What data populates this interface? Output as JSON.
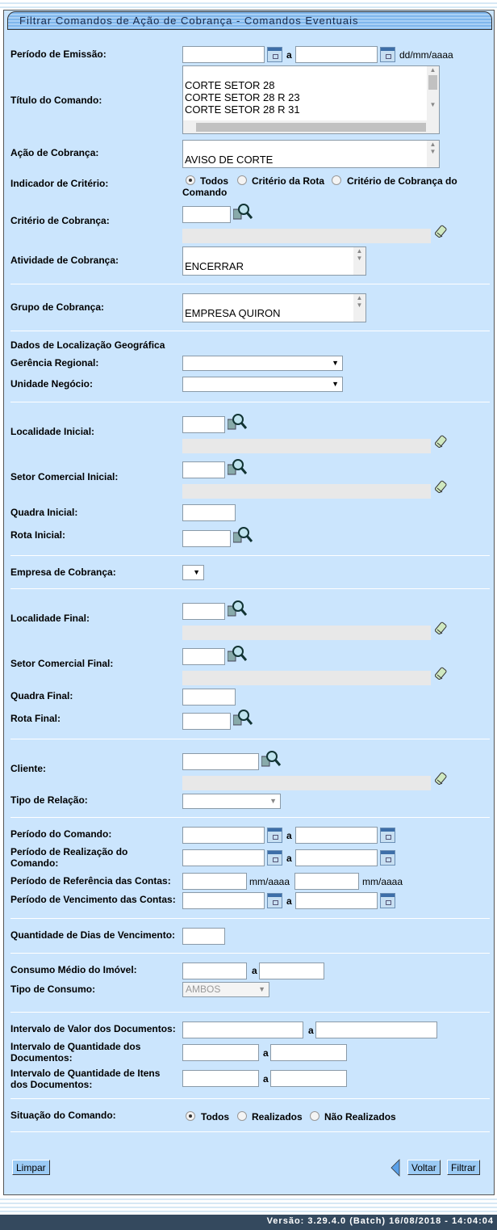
{
  "title": "Filtrar Comandos de Ação de Cobrança - Comandos Eventuais",
  "labels": {
    "periodo_emissao": "Período de Emissão:",
    "titulo": "Título do Comando:",
    "acao": "Ação de Cobrança:",
    "indicador": "Indicador de Critério:",
    "criterio": "Critério de Cobrança:",
    "atividade": "Atividade de Cobrança:",
    "grupo": "Grupo de Cobrança:",
    "dados_loc": "Dados de Localização Geográfica",
    "gerencia": "Gerência Regional:",
    "unidade": "Unidade Negócio:",
    "loc_ini": "Localidade Inicial:",
    "setor_ini": "Setor Comercial Inicial:",
    "quadra_ini": "Quadra Inicial:",
    "rota_ini": "Rota Inicial:",
    "empresa": "Empresa de Cobrança:",
    "loc_fin": "Localidade Final:",
    "setor_fin": "Setor Comercial Final:",
    "quadra_fin": "Quadra Final:",
    "rota_fin": "Rota Final:",
    "cliente": "Cliente:",
    "tipo_relacao": "Tipo de Relação:",
    "periodo_comando": "Período do Comando:",
    "periodo_realizacao_1": "Período de Realização do",
    "periodo_realizacao_2": "Comando:",
    "periodo_referencia": "Período de Referência das Contas:",
    "periodo_vencimento": "Período de Vencimento das Contas:",
    "qtd_dias": "Quantidade de Dias de Vencimento:",
    "consumo": "Consumo Médio do Imóvel:",
    "tipo_consumo": "Tipo de Consumo:",
    "valor_docs": "Intervalo de Valor dos Documentos:",
    "qtd_docs_1": "Intervalo de Quantidade dos",
    "qtd_docs_2": "Documentos:",
    "qtd_itens_1": "Intervalo de Quantidade de Itens",
    "qtd_itens_2": "dos Documentos:",
    "situacao": "Situação do Comando:"
  },
  "a": "a",
  "date_hint": "dd/mm/aaaa",
  "month_hint": "mm/aaaa",
  "titulo_options": [
    "CORTE SETOR 28",
    "CORTE SETOR 28 R 23",
    "CORTE SETOR 28 R 31"
  ],
  "acao_value": "AVISO DE CORTE",
  "atividade_value": "ENCERRAR",
  "grupo_value": "EMPRESA QUIRON",
  "tipo_consumo_value": "AMBOS",
  "indicador_options": [
    "Todos",
    "Critério da Rota",
    "Critério de Cobrança do",
    "Comando"
  ],
  "situacao_options": [
    "Todos",
    "Realizados",
    "Não Realizados"
  ],
  "buttons": {
    "limpar": "Limpar",
    "voltar": "Voltar",
    "filtrar": "Filtrar"
  },
  "footer": "Versão: 3.29.4.0 (Batch) 16/08/2018 - 14:04:04"
}
